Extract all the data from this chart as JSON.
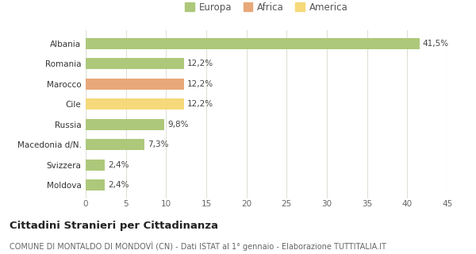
{
  "categories": [
    "Moldova",
    "Svizzera",
    "Macedonia d/N.",
    "Russia",
    "Cile",
    "Marocco",
    "Romania",
    "Albania"
  ],
  "values": [
    2.4,
    2.4,
    7.3,
    9.8,
    12.2,
    12.2,
    12.2,
    41.5
  ],
  "labels": [
    "2,4%",
    "2,4%",
    "7,3%",
    "9,8%",
    "12,2%",
    "12,2%",
    "12,2%",
    "41,5%"
  ],
  "colors": [
    "#adc87a",
    "#adc87a",
    "#adc87a",
    "#adc87a",
    "#f5d97a",
    "#e8a87a",
    "#adc87a",
    "#adc87a"
  ],
  "legend": [
    {
      "label": "Europa",
      "color": "#adc87a"
    },
    {
      "label": "Africa",
      "color": "#e8a87a"
    },
    {
      "label": "America",
      "color": "#f5d97a"
    }
  ],
  "xlim": [
    0,
    45
  ],
  "xticks": [
    0,
    5,
    10,
    15,
    20,
    25,
    30,
    35,
    40,
    45
  ],
  "title": "Cittadini Stranieri per Cittadinanza",
  "subtitle": "COMUNE DI MONTALDO DI MONDOVÌ (CN) - Dati ISTAT al 1° gennaio - Elaborazione TUTTITALIA.IT",
  "background_color": "#ffffff",
  "grid_color": "#e0e0d8",
  "bar_height": 0.55,
  "label_fontsize": 7.5,
  "tick_fontsize": 7.5,
  "title_fontsize": 9.5,
  "subtitle_fontsize": 7.0,
  "legend_fontsize": 8.5
}
